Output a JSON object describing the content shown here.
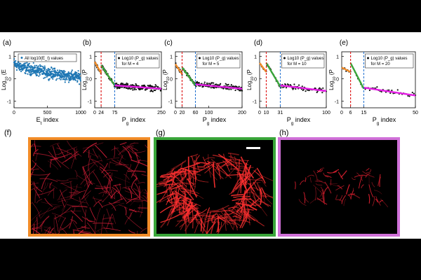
{
  "panel_labels": [
    "(a)",
    "(b)",
    "(c)",
    "(d)",
    "(e)",
    "(f)",
    "(g)",
    "(h)"
  ],
  "colors": {
    "scatter_a": "#1f77b4",
    "orange": "#f28c28",
    "green": "#3aa63a",
    "magenta": "#e61ee6",
    "red_dash": "#e02020",
    "blue_dash": "#1f6fd0",
    "frame_f": "#f28c28",
    "frame_g": "#3aa63a",
    "frame_h": "#d070d8"
  },
  "chart_data": [
    {
      "type": "scatter",
      "panel": "(a)",
      "xlabel": "E_t index",
      "ylabel": "Log10 (E_t)",
      "xlim": [
        0,
        1000
      ],
      "ylim": [
        -1.3,
        1.2
      ],
      "xticks": [
        0,
        500,
        1000
      ],
      "yticks": [
        -1,
        0,
        1
      ],
      "legend": "All log10(E_t) values",
      "series": [
        {
          "n": 1000,
          "trend_start": 0.7,
          "trend_end": 0.05,
          "spread": 0.35
        }
      ]
    },
    {
      "type": "scatter",
      "panel": "(b)",
      "M": 4,
      "xlabel": "P_g index",
      "ylabel": "Log10 (P_g)",
      "xlim": [
        0,
        250
      ],
      "ylim": [
        -1.3,
        1.2
      ],
      "xticks": [
        0,
        24,
        75,
        250
      ],
      "yticks": [
        -1,
        0,
        1
      ],
      "legend": [
        "Log10 (P_g) values",
        "for M = 4"
      ],
      "red_line": 24,
      "blue_line": 75,
      "n": 250,
      "segments": {
        "orange": [
          [
            0,
            0.75
          ],
          [
            24,
            0.25
          ]
        ],
        "green": [
          [
            24,
            0.6
          ],
          [
            75,
            -0.3
          ]
        ],
        "magenta": [
          [
            75,
            -0.3
          ],
          [
            250,
            -0.45
          ]
        ]
      }
    },
    {
      "type": "scatter",
      "panel": "(c)",
      "M": 5,
      "xlabel": "P_g index",
      "ylabel": "Log10 (P_g)",
      "xlim": [
        0,
        200
      ],
      "ylim": [
        -1.3,
        1.2
      ],
      "xticks": [
        0,
        20,
        60,
        100,
        200
      ],
      "yticks": [
        -1,
        0,
        1
      ],
      "legend": [
        "Log10 (P_g) values",
        "for M = 5"
      ],
      "red_line": 20,
      "blue_line": 60,
      "n": 200,
      "segments": {
        "orange": [
          [
            0,
            0.65
          ],
          [
            20,
            0.2
          ]
        ],
        "green": [
          [
            20,
            0.5
          ],
          [
            60,
            -0.3
          ]
        ],
        "magenta": [
          [
            60,
            -0.25
          ],
          [
            200,
            -0.45
          ]
        ]
      }
    },
    {
      "type": "scatter",
      "panel": "(d)",
      "M": 10,
      "xlabel": "P_g index",
      "ylabel": "Log10 (P_g)",
      "xlim": [
        0,
        100
      ],
      "ylim": [
        -1.3,
        1.2
      ],
      "xticks": [
        0,
        10,
        31,
        100
      ],
      "yticks": [
        -1,
        0,
        1
      ],
      "legend": [
        "Log10 (P_g) values",
        "for M = 10"
      ],
      "red_line": 10,
      "blue_line": 31,
      "n": 100,
      "segments": {
        "orange": [
          [
            0,
            0.7
          ],
          [
            10,
            0.3
          ]
        ],
        "green": [
          [
            10,
            0.7
          ],
          [
            31,
            -0.35
          ]
        ],
        "magenta": [
          [
            31,
            -0.3
          ],
          [
            100,
            -0.55
          ]
        ]
      }
    },
    {
      "type": "scatter",
      "panel": "(e)",
      "M": 20,
      "xlabel": "P_g index",
      "ylabel": "Log10 (P_g)",
      "xlim": [
        0,
        50
      ],
      "ylim": [
        -1.3,
        1.2
      ],
      "xticks": [
        0,
        6,
        15,
        50
      ],
      "yticks": [
        -1,
        0,
        1
      ],
      "legend": [
        "Log10 (P_g) values",
        "for M = 20"
      ],
      "red_line": 6,
      "blue_line": 15,
      "n": 50,
      "segments": {
        "orange": [
          [
            0,
            0.5
          ],
          [
            6,
            0.3
          ]
        ],
        "green": [
          [
            6,
            0.7
          ],
          [
            15,
            -0.45
          ]
        ],
        "magenta": [
          [
            15,
            -0.4
          ],
          [
            50,
            -0.75
          ]
        ]
      }
    }
  ]
}
